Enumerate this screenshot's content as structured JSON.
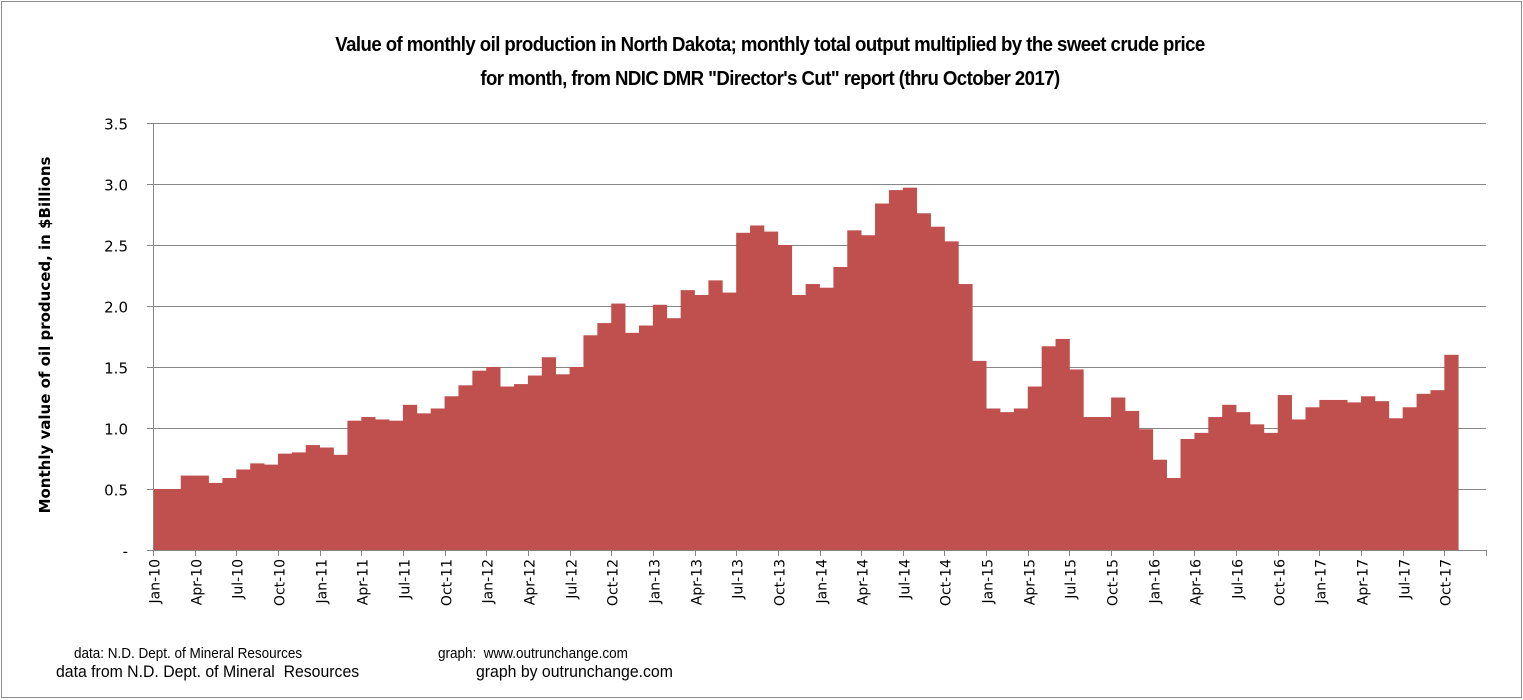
{
  "chart_data": {
    "type": "bar",
    "title": "Value of monthly oil production in North Dakota; monthly total output multiplied by the sweet crude price",
    "subtitle": "for month, from NDIC DMR \"Director's Cut\" report  (thru  October 2017)",
    "xlabel": "",
    "ylabel": "Monthly value of oil produced, in $Billions",
    "ylim": [
      0,
      3.5
    ],
    "yticks": [
      0,
      0.5,
      1.0,
      1.5,
      2.0,
      2.5,
      3.0,
      3.5
    ],
    "ytick_labels": [
      "-",
      "0.5",
      "1.0",
      "1.5",
      "2.0",
      "2.5",
      "3.0",
      "3.5"
    ],
    "grid": true,
    "x_slots": 96,
    "xtick_labels": [
      "Jan-10",
      "Apr-10",
      "Jul-10",
      "Oct-10",
      "Jan-11",
      "Apr-11",
      "Jul-11",
      "Oct-11",
      "Jan-12",
      "Apr-12",
      "Jul-12",
      "Oct-12",
      "Jan-13",
      "Apr-13",
      "Jul-13",
      "Oct-13",
      "Jan-14",
      "Apr-14",
      "Jul-14",
      "Oct-14",
      "Jan-15",
      "Apr-15",
      "Jul-15",
      "Oct-15",
      "Jan-16",
      "Apr-16",
      "Jul-16",
      "Oct-16",
      "Jan-17",
      "Apr-17",
      "Jul-17",
      "Oct-17"
    ],
    "bar_color": "#c0504d",
    "values": [
      0.5,
      0.5,
      0.61,
      0.61,
      0.55,
      0.59,
      0.66,
      0.71,
      0.7,
      0.79,
      0.8,
      0.86,
      0.84,
      0.78,
      1.06,
      1.09,
      1.07,
      1.06,
      1.19,
      1.12,
      1.16,
      1.26,
      1.35,
      1.47,
      1.5,
      1.34,
      1.36,
      1.43,
      1.58,
      1.44,
      1.5,
      1.76,
      1.86,
      2.02,
      1.78,
      1.84,
      2.01,
      1.9,
      2.13,
      2.09,
      2.21,
      2.11,
      2.6,
      2.66,
      2.61,
      2.5,
      2.09,
      2.18,
      2.15,
      2.32,
      2.62,
      2.58,
      2.84,
      2.95,
      2.97,
      2.76,
      2.65,
      2.53,
      2.18,
      1.55,
      1.16,
      1.13,
      1.16,
      1.34,
      1.67,
      1.73,
      1.48,
      1.09,
      1.09,
      1.25,
      1.14,
      0.99,
      0.74,
      0.59,
      0.91,
      0.96,
      1.09,
      1.19,
      1.13,
      1.03,
      0.96,
      1.27,
      1.07,
      1.17,
      1.23,
      1.23,
      1.21,
      1.26,
      1.22,
      1.08,
      1.17,
      1.28,
      1.31,
      1.6
    ]
  },
  "footer": {
    "source_line1": "data: N.D. Dept. of Mineral Resources",
    "source_line2": "data from N.D. Dept. of Mineral  Resources",
    "graph_line1": "graph:  www.outrunchange.com",
    "graph_line2": "graph by outrunchange.com"
  }
}
